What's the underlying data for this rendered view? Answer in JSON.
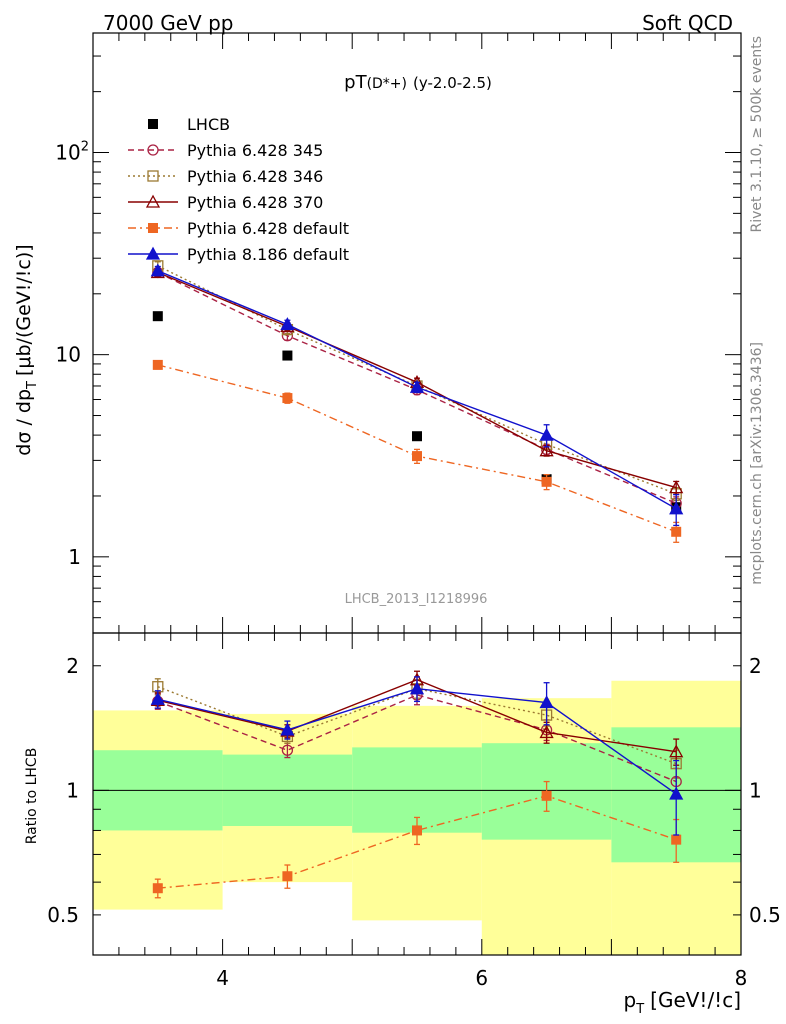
{
  "header": {
    "left": "7000 GeV pp",
    "right": "Soft QCD"
  },
  "side_labels": {
    "rivet": "Rivet 3.1.10, ≥ 500k events",
    "mcplots": "mcplots.cern.ch [arXiv:1306.3436]"
  },
  "analysis_id": "LHCB_2013_I1218996",
  "chart_data": [
    {
      "type": "scatter",
      "title": "pT(D*+) (y-2.0-2.5)",
      "title_main": "pT",
      "title_paren": "(D*+)",
      "title_suffix": "(y-2.0-2.5)",
      "xlabel": "p_T [GeV/c]",
      "xlabel_main": "p",
      "xlabel_sub": "T",
      "xlabel_rest": "[GeV!/!c]",
      "ylabel": "dσ / dp_T [μb/(GeV!/!c)]",
      "ylabel_main": "dσ / dp",
      "ylabel_sub": "T",
      "ylabel_rest": "[μb/(GeV!/!c)]",
      "y_scale": "log",
      "xlim": [
        3,
        8
      ],
      "ylim": [
        0.42,
        390
      ],
      "x_ticks": [
        "4",
        "6",
        "8"
      ],
      "y_ticks": [
        "1",
        "10",
        "10^2"
      ],
      "legend_placement": "top-left",
      "x": [
        3.5,
        4.5,
        5.5,
        6.5,
        7.5
      ],
      "series": [
        {
          "name": "LHCB",
          "color": "#000000",
          "marker": "filled-square",
          "line": "none",
          "values": [
            15.5,
            9.9,
            3.95,
            2.42,
            1.76
          ],
          "errors": [
            0,
            0,
            0,
            0,
            0
          ]
        },
        {
          "name": "Pythia 6.428 345",
          "color": "#aa2244",
          "marker": "open-circle",
          "line": "dashed",
          "values": [
            25.5,
            12.4,
            6.7,
            3.4,
            1.84
          ],
          "errors": [
            1.2,
            0.6,
            0.35,
            0.2,
            0.14
          ]
        },
        {
          "name": "Pythia 6.428 346",
          "color": "#9c7a32",
          "marker": "open-square",
          "line": "dotted",
          "values": [
            27.5,
            13.3,
            7.0,
            3.6,
            2.05
          ],
          "errors": [
            1.3,
            0.6,
            0.35,
            0.2,
            0.15
          ]
        },
        {
          "name": "Pythia 6.428 370",
          "color": "#880000",
          "marker": "open-triangle",
          "line": "solid",
          "values": [
            25.5,
            13.8,
            7.3,
            3.35,
            2.2
          ],
          "errors": [
            1.2,
            0.6,
            0.35,
            0.2,
            0.16
          ]
        },
        {
          "name": "Pythia 6.428 default",
          "color": "#ee6622",
          "marker": "filled-square",
          "line": "dashdot",
          "values": [
            8.9,
            6.1,
            3.15,
            2.35,
            1.33
          ],
          "errors": [
            0.4,
            0.35,
            0.25,
            0.2,
            0.15
          ]
        },
        {
          "name": "Pythia 8.186 default",
          "color": "#1111cc",
          "marker": "filled-triangle",
          "line": "solid",
          "values": [
            26,
            14.1,
            6.9,
            4.0,
            1.73
          ],
          "errors": [
            1.3,
            0.7,
            0.4,
            0.5,
            0.3
          ]
        }
      ]
    },
    {
      "type": "scatter",
      "title": "",
      "ylabel": "Ratio to LHCB",
      "y_scale": "log",
      "xlim": [
        3,
        8
      ],
      "ylim": [
        0.4,
        2.4
      ],
      "y_ticks": [
        "0.5",
        "1",
        "2"
      ],
      "reference_line": 1,
      "uncertainty_bands": {
        "x_edges": [
          3,
          4,
          5,
          6,
          7,
          8
        ],
        "inner_color": "#99ff99",
        "outer_color": "#ffff99",
        "inner_low": [
          0.8,
          0.82,
          0.79,
          0.76,
          0.67
        ],
        "inner_high": [
          1.25,
          1.22,
          1.27,
          1.3,
          1.42
        ],
        "outer_low": [
          0.515,
          0.6,
          0.485,
          0.37,
          0.34
        ],
        "outer_high": [
          1.56,
          1.53,
          1.6,
          1.67,
          1.84
        ]
      },
      "x": [
        3.5,
        4.5,
        5.5,
        6.5,
        7.5
      ],
      "series": [
        {
          "name": "Pythia 6.428 345",
          "color": "#aa2244",
          "marker": "open-circle",
          "line": "dashed",
          "values": [
            1.64,
            1.25,
            1.7,
            1.4,
            1.05
          ],
          "errors": [
            0.07,
            0.05,
            0.09,
            0.08,
            0.08
          ]
        },
        {
          "name": "Pythia 6.428 346",
          "color": "#9c7a32",
          "marker": "open-square",
          "line": "dotted",
          "values": [
            1.78,
            1.35,
            1.76,
            1.52,
            1.16
          ],
          "errors": [
            0.08,
            0.05,
            0.09,
            0.09,
            0.09
          ]
        },
        {
          "name": "Pythia 6.428 370",
          "color": "#880000",
          "marker": "open-triangle",
          "line": "solid",
          "values": [
            1.65,
            1.39,
            1.85,
            1.38,
            1.24
          ],
          "errors": [
            0.07,
            0.05,
            0.09,
            0.08,
            0.09
          ]
        },
        {
          "name": "Pythia 6.428 default",
          "color": "#ee6622",
          "marker": "filled-square",
          "line": "dashdot",
          "values": [
            0.58,
            0.62,
            0.8,
            0.97,
            0.76
          ],
          "errors": [
            0.03,
            0.04,
            0.06,
            0.08,
            0.09
          ]
        },
        {
          "name": "Pythia 8.186 default",
          "color": "#1111cc",
          "marker": "filled-triangle",
          "line": "solid",
          "values": [
            1.66,
            1.4,
            1.76,
            1.63,
            0.98
          ],
          "errors": [
            0.08,
            0.07,
            0.12,
            0.19,
            0.2
          ]
        }
      ]
    }
  ]
}
